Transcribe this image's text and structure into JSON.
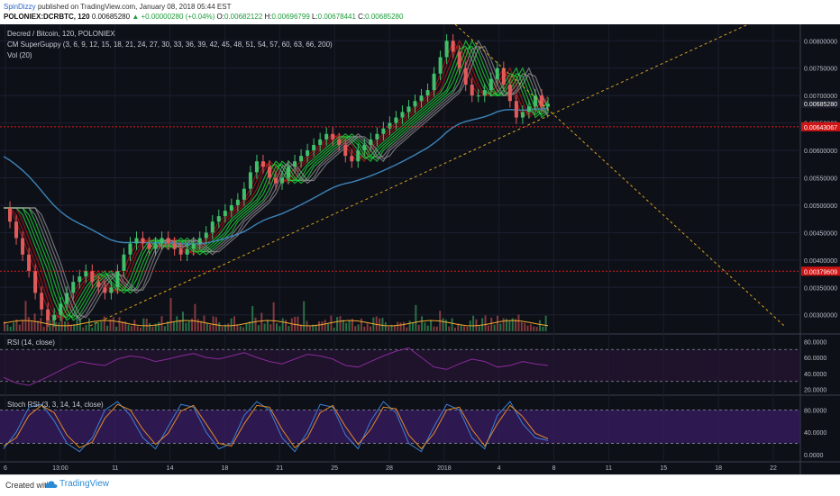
{
  "header": {
    "author": "SpinDizzy",
    "published": "published on TradingView.com, January 08, 2018 05:44 EST",
    "symbol": "POLONIEX:DCRBTC, 120",
    "last": "0.00685280",
    "change_arrow": "▲",
    "change": "+0.00000280 (+0.04%)",
    "o_label": "O:",
    "o": "0.00682122",
    "h_label": "H:",
    "h": "0.00696799",
    "l_label": "L:",
    "l": "0.00678441",
    "c_label": "C:",
    "c": "0.00685280"
  },
  "legend": {
    "title": "Decred / Bitcoin, 120, POLONIEX",
    "indicator": "CM SuperGuppy (3, 6, 9, 12, 15, 18, 21, 24, 27, 30, 33, 36, 39, 42, 45, 48, 51, 54, 57, 60, 63, 66, 200)",
    "vol": "Vol (20)",
    "rsi": "RSI (14, close)",
    "stoch": "Stoch RSI (3, 3, 14, 14, close)"
  },
  "footer": {
    "created": "Created with",
    "brand": "TradingView",
    "logo_icon": "cloud-icon"
  },
  "colors": {
    "background": "#0e1018",
    "candle_up": "#3fbf6a",
    "candle_down": "#e25b5b",
    "guppy_bull": "#27e640",
    "guppy_bear": "#c21919",
    "guppy_neutral": "#9a9a9a",
    "ema200": "#3b84b8",
    "trendline": "#d9a21c",
    "horizontal_level": "#e01a1a",
    "rsi_line": "#8a2a9a",
    "stoch_k": "#3a7fd6",
    "stoch_d": "#e08a2a",
    "volume_ma": "#f0a830"
  },
  "chart_data": [
    {
      "type": "candlestick",
      "title": "Decred / Bitcoin, 120, POLONIEX",
      "x_ticks": [
        "6",
        "13:00",
        "11",
        "14",
        "18",
        "21",
        "25",
        "28",
        "2018",
        "4",
        "8",
        "11",
        "15",
        "18",
        "22"
      ],
      "y_ticks": [
        "0.00800000",
        "0.00750000",
        "0.00700000",
        "0.00650000",
        "0.00600000",
        "0.00550000",
        "0.00500000",
        "0.00450000",
        "0.00400000",
        "0.00350000",
        "0.00300000"
      ],
      "ylim": [
        0.0027,
        0.0083
      ],
      "price_labels": [
        {
          "value": "0.00685280",
          "y": 0.0068528,
          "label_color": "#1a1d28"
        },
        {
          "value": "0.00643067",
          "y": 0.00643067,
          "label_color": "#d01414"
        },
        {
          "value": "0.00379609",
          "y": 0.00379609,
          "label_color": "#d01414"
        }
      ],
      "horizontal_levels": [
        0.00643067,
        0.00379609
      ],
      "close_series_approx": [
        0.00495,
        0.0047,
        0.0044,
        0.0041,
        0.0038,
        0.0034,
        0.0031,
        0.0029,
        0.003,
        0.0032,
        0.0034,
        0.0036,
        0.0037,
        0.0038,
        0.0036,
        0.0035,
        0.0034,
        0.0035,
        0.0038,
        0.0041,
        0.0043,
        0.0044,
        0.0043,
        0.0042,
        0.0043,
        0.0044,
        0.0043,
        0.0042,
        0.0041,
        0.0042,
        0.0043,
        0.0044,
        0.0045,
        0.0047,
        0.0048,
        0.0049,
        0.005,
        0.0051,
        0.0053,
        0.0056,
        0.0058,
        0.0057,
        0.0055,
        0.0054,
        0.0055,
        0.0057,
        0.0058,
        0.0059,
        0.006,
        0.0061,
        0.0062,
        0.0063,
        0.0062,
        0.0061,
        0.0059,
        0.0058,
        0.006,
        0.0061,
        0.0062,
        0.0063,
        0.0064,
        0.0065,
        0.0066,
        0.0067,
        0.0068,
        0.0069,
        0.007,
        0.0071,
        0.0074,
        0.0077,
        0.008,
        0.0078,
        0.0075,
        0.0072,
        0.007,
        0.007,
        0.0071,
        0.0073,
        0.0075,
        0.0072,
        0.0069,
        0.0066,
        0.0067,
        0.0068,
        0.007,
        0.0068,
        0.00685
      ]
    },
    {
      "type": "line",
      "title": "RSI (14, close)",
      "y_ticks": [
        "80.0000",
        "60.0000",
        "40.0000",
        "20.0000"
      ],
      "ylim": [
        15,
        85
      ],
      "bands": [
        70,
        30
      ],
      "values_approx": [
        35,
        28,
        25,
        32,
        40,
        48,
        55,
        52,
        50,
        58,
        62,
        60,
        55,
        58,
        62,
        65,
        60,
        58,
        62,
        66,
        60,
        55,
        52,
        58,
        64,
        62,
        58,
        50,
        48,
        55,
        62,
        68,
        72,
        60,
        48,
        45,
        52,
        58,
        55,
        48,
        50,
        55,
        52,
        50
      ]
    },
    {
      "type": "line",
      "title": "Stoch RSI (3, 3, 14, 14, close)",
      "y_ticks": [
        "80.0000",
        "40.0000",
        "0.0000"
      ],
      "ylim": [
        -10,
        100
      ],
      "bands": [
        80,
        20
      ],
      "series": [
        {
          "values_approx": [
            10,
            40,
            85,
            90,
            60,
            20,
            5,
            30,
            80,
            95,
            70,
            30,
            10,
            50,
            90,
            85,
            40,
            10,
            20,
            70,
            95,
            80,
            30,
            5,
            40,
            90,
            85,
            35,
            10,
            60,
            95,
            75,
            20,
            5,
            50,
            90,
            80,
            30,
            10,
            70,
            95,
            55,
            30,
            25
          ]
        },
        {
          "values_approx": [
            15,
            30,
            70,
            88,
            75,
            35,
            12,
            22,
            65,
            90,
            80,
            45,
            18,
            38,
            78,
            88,
            55,
            20,
            15,
            55,
            88,
            85,
            45,
            12,
            30,
            75,
            88,
            50,
            18,
            45,
            85,
            82,
            35,
            10,
            38,
            80,
            85,
            45,
            15,
            55,
            88,
            68,
            38,
            28
          ]
        }
      ]
    }
  ]
}
